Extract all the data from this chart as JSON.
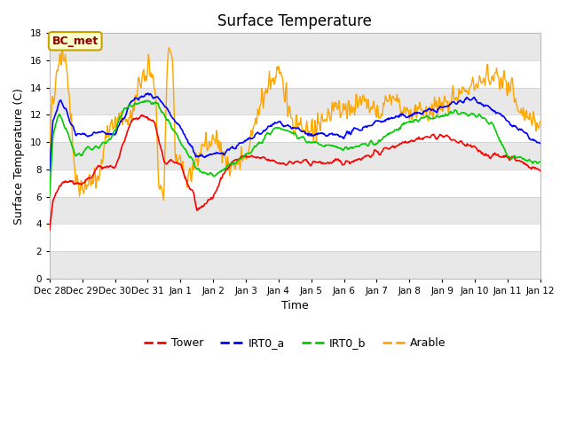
{
  "title": "Surface Temperature",
  "xlabel": "Time",
  "ylabel": "Surface Temperature (C)",
  "ylim": [
    0,
    18
  ],
  "yticks": [
    0,
    2,
    4,
    6,
    8,
    10,
    12,
    14,
    16,
    18
  ],
  "annotation_text": "BC_met",
  "annotation_color": "#8B0000",
  "annotation_bg": "#FFFFCC",
  "annotation_border": "#C8A000",
  "fig_bg": "#FFFFFF",
  "plot_bg": "#FFFFFF",
  "band_color": "#E8E8E8",
  "colors": {
    "Tower": "#FF0000",
    "IRT0_a": "#0000FF",
    "IRT0_b": "#00CC00",
    "Arable": "#FFA500"
  },
  "linewidths": {
    "Tower": 1.2,
    "IRT0_a": 1.2,
    "IRT0_b": 1.2,
    "Arable": 1.0
  },
  "x_tick_labels": [
    "Dec 28",
    "Dec 29",
    "Dec 30",
    "Dec 31",
    "Jan 1",
    "Jan 2",
    "Jan 3",
    "Jan 4",
    "Jan 5",
    "Jan 6",
    "Jan 7",
    "Jan 8",
    "Jan 9",
    "Jan 10",
    "Jan 11",
    "Jan 12"
  ],
  "num_days": 15,
  "pts_per_day": 48
}
